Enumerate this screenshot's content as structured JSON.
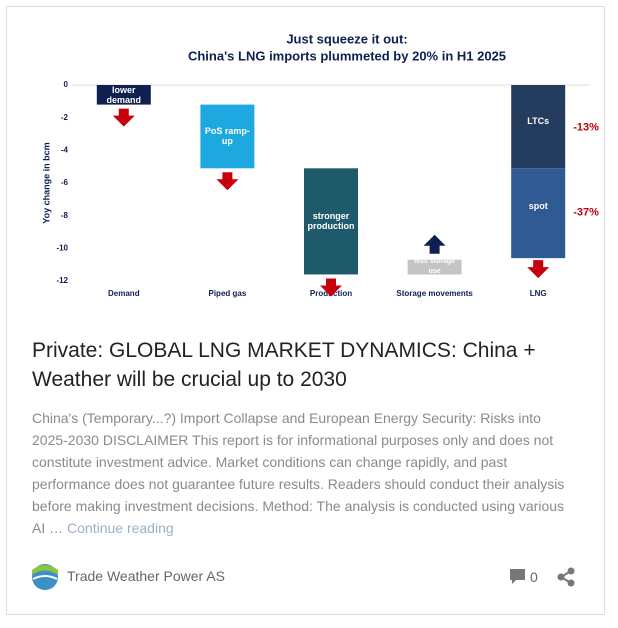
{
  "chart_data": {
    "type": "waterfall",
    "title": "Just squeeze it out:",
    "subtitle": "China's LNG imports plummeted by 20% in H1 2025",
    "y_label": "Yoy change in bcm",
    "categories": [
      "Demand",
      "Piped gas",
      "Production",
      "Storage movements",
      "LNG"
    ],
    "values": [
      -1.2,
      -3.9,
      -6.5,
      0.9,
      null
    ],
    "bar_labels": [
      "lower demand",
      "PoS ramp-up",
      "stronger production",
      "less storage use",
      null
    ],
    "colors": [
      "#0d2050",
      "#1ea8e0",
      "#1f5a6b",
      "#c4c4c4",
      null
    ],
    "lng_segments": [
      {
        "name": "LTCs",
        "value": -5.1,
        "color": "#243c5e",
        "change_label": "-13%"
      },
      {
        "name": "spot",
        "value": -5.5,
        "color": "#2f5a94",
        "change_label": "-37%"
      }
    ],
    "ylim": [
      -12,
      0
    ],
    "yticks": [
      0,
      -2,
      -4,
      -6,
      -8,
      -10,
      -12
    ]
  },
  "post": {
    "title": "Private: GLOBAL LNG MARKET DYNAMICS: China + Weather will be crucial up to 2030",
    "excerpt": "China's (Temporary...?) Import Collapse and European Energy Security: Risks into 2025-2030 DISCLAIMER This report is for informational purposes only and does not constitute investment advice. Market conditions can change rapidly, and past performance does not guarantee future results. Readers should conduct their analysis before making investment decisions. Method: The analysis is conducted using various AI …",
    "more_link": "Continue reading",
    "author": "Trade Weather Power AS",
    "comments": "0"
  }
}
